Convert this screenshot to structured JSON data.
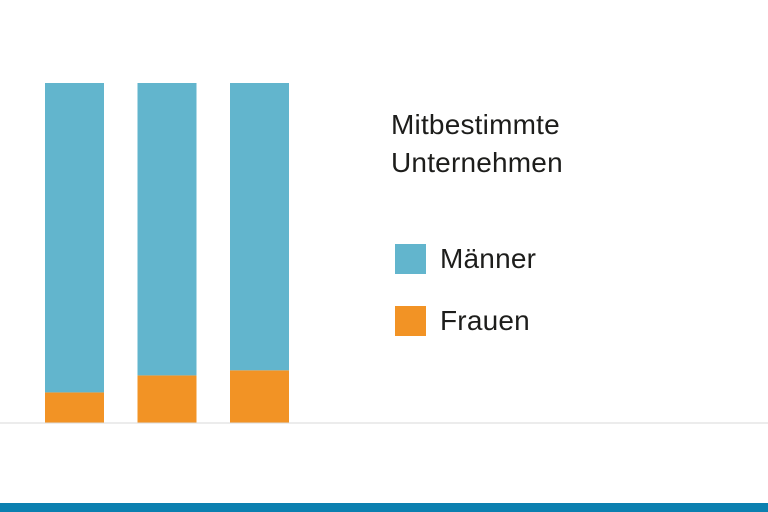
{
  "chart_data": {
    "type": "bar",
    "stacked": true,
    "categories": [
      "",
      "",
      ""
    ],
    "series": [
      {
        "name": "Männer",
        "values": [
          91,
          86,
          84.5
        ]
      },
      {
        "name": "Frauen",
        "values": [
          9,
          14,
          15.5
        ]
      }
    ],
    "legend_title": "Mitbestimmte\nUnternehmen",
    "legend_position": "right",
    "grid": false
  },
  "colors": {
    "maenner": "#62b5cd",
    "frauen": "#f29325",
    "baseline": "#d9d9d9",
    "bottom_bar": "#0b80b0"
  }
}
